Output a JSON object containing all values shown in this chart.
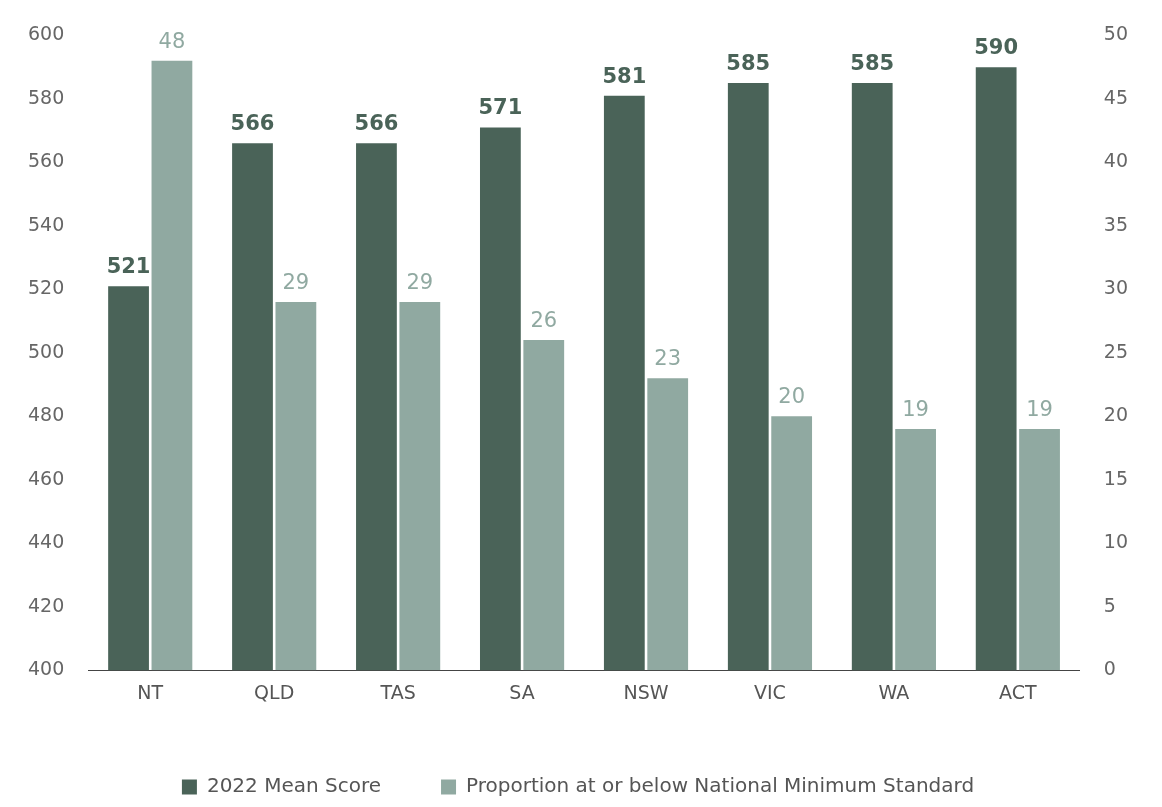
{
  "chart_data": {
    "type": "bar",
    "categories": [
      "NT",
      "QLD",
      "TAS",
      "SA",
      "NSW",
      "VIC",
      "WA",
      "ACT"
    ],
    "series": [
      {
        "name": "2022 Mean Score",
        "color": "#4a6358",
        "values": [
          521,
          566,
          566,
          571,
          581,
          585,
          585,
          590
        ]
      },
      {
        "name": "Proportion at or below National Minimum Standard",
        "color": "#90a9a1",
        "axis": "y2",
        "values": [
          48,
          29,
          29,
          26,
          23,
          20,
          19,
          19
        ]
      }
    ],
    "ylim": [
      400,
      600
    ],
    "yticks": [
      400,
      420,
      440,
      460,
      480,
      500,
      520,
      540,
      560,
      580,
      600
    ],
    "y2lim": [
      0,
      50
    ],
    "y2ticks": [
      0,
      5,
      10,
      15,
      20,
      25,
      30,
      35,
      40,
      45,
      50
    ],
    "data_labels": true,
    "grid": false,
    "legend": "bottom"
  }
}
